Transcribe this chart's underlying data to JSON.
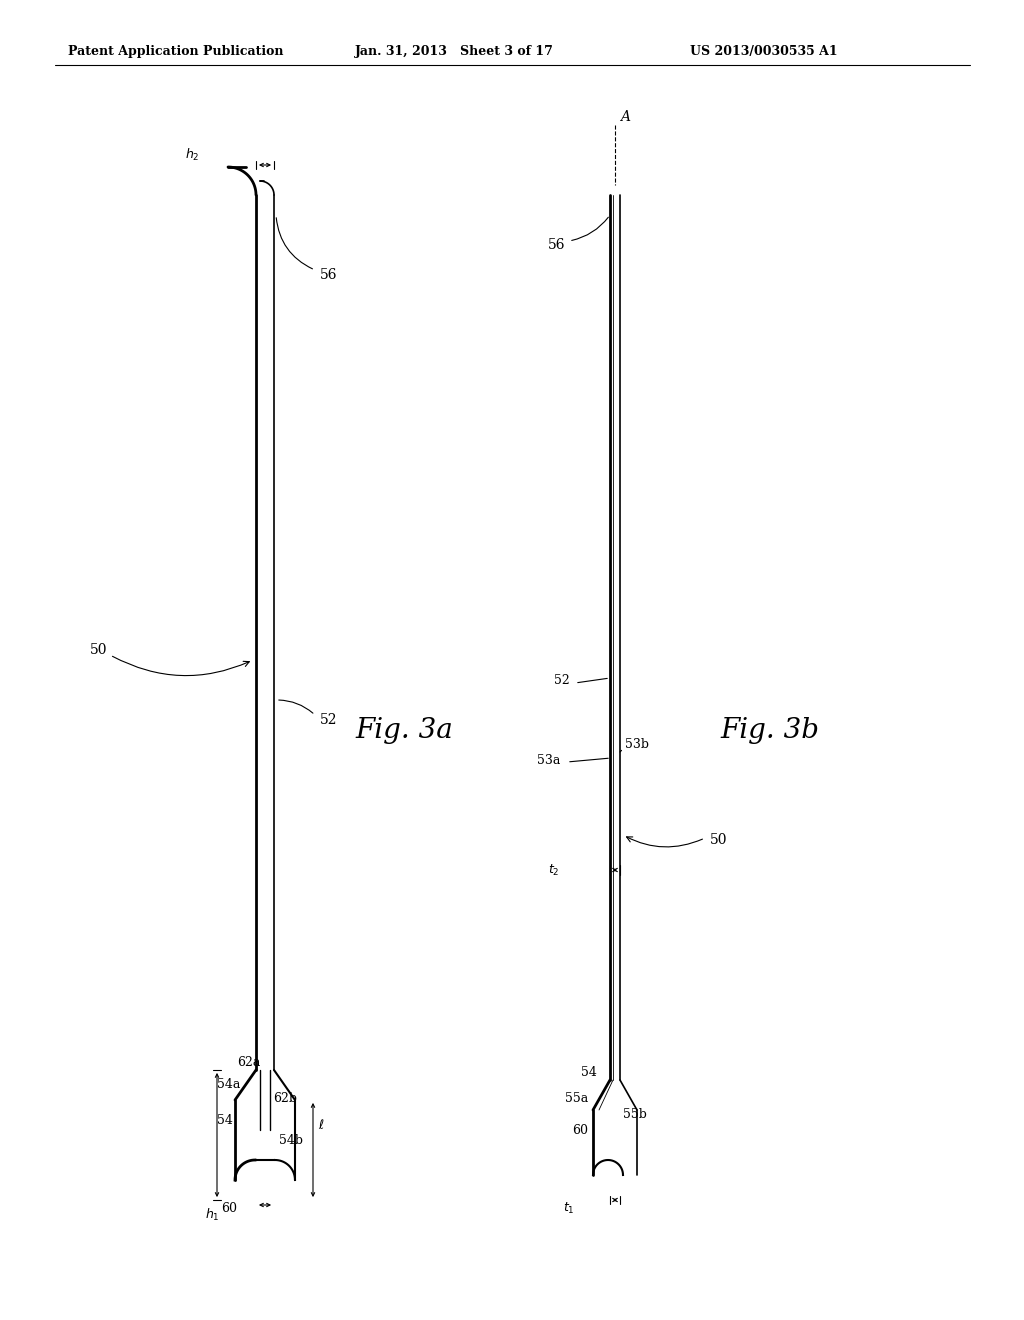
{
  "bg_color": "#ffffff",
  "line_color": "#000000",
  "fig3a_label": "Fig. 3a",
  "fig3b_label": "Fig. 3b",
  "header1": "Patent Application Publication",
  "header2": "Jan. 31, 2013   Sheet 3 of 17",
  "header3": "US 2013/0030535 A1"
}
